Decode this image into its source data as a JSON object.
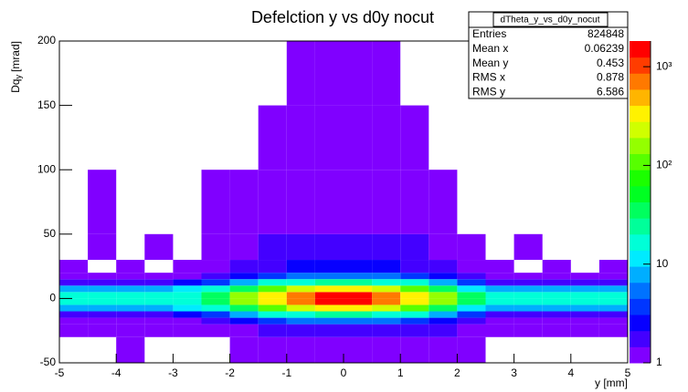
{
  "chart_data": {
    "type": "heatmap",
    "title": "Defelction y vs d0y nocut",
    "xlabel": "y [mm]",
    "ylabel": {
      "main": "Dq",
      "sub": "y",
      "unit": "[mrad]"
    },
    "xbins": [
      -5,
      -4.5,
      -4,
      -3.5,
      -3,
      -2.5,
      -2,
      -1.5,
      -1,
      -0.5,
      0,
      0.5,
      1,
      1.5,
      2,
      2.5,
      3,
      3.5,
      4,
      4.5,
      5
    ],
    "ybins": [
      -50,
      -30,
      -20,
      -15,
      -10,
      -5,
      0,
      5,
      10,
      15,
      20,
      30,
      50,
      100,
      150,
      200
    ],
    "z": [
      [
        0,
        0,
        1,
        0,
        0,
        0,
        1,
        1,
        1,
        1,
        1,
        1,
        1,
        1,
        1,
        0,
        0,
        0,
        0,
        0
      ],
      [
        1,
        1,
        1,
        1,
        1,
        1,
        1,
        2,
        2,
        2,
        2,
        2,
        2,
        2,
        1,
        1,
        1,
        1,
        1,
        1
      ],
      [
        1,
        1,
        1,
        1,
        1,
        2,
        3,
        4,
        5,
        5,
        5,
        5,
        4,
        3,
        2,
        1,
        1,
        1,
        1,
        1
      ],
      [
        2,
        2,
        2,
        2,
        3,
        4,
        8,
        15,
        20,
        25,
        25,
        20,
        15,
        8,
        4,
        2,
        2,
        2,
        2,
        2
      ],
      [
        8,
        8,
        8,
        8,
        10,
        15,
        40,
        100,
        200,
        300,
        300,
        200,
        100,
        40,
        12,
        8,
        8,
        8,
        8,
        8
      ],
      [
        15,
        15,
        15,
        15,
        20,
        40,
        150,
        400,
        800,
        1300,
        1300,
        800,
        400,
        150,
        30,
        15,
        15,
        15,
        15,
        15
      ],
      [
        15,
        15,
        15,
        15,
        20,
        40,
        150,
        400,
        800,
        1300,
        1300,
        800,
        400,
        150,
        30,
        15,
        15,
        15,
        15,
        15
      ],
      [
        8,
        8,
        8,
        8,
        10,
        15,
        40,
        100,
        200,
        300,
        300,
        200,
        100,
        40,
        12,
        8,
        8,
        8,
        8,
        8
      ],
      [
        2,
        2,
        2,
        2,
        3,
        4,
        8,
        15,
        20,
        25,
        25,
        20,
        15,
        8,
        4,
        2,
        2,
        2,
        2,
        2
      ],
      [
        1,
        1,
        1,
        1,
        1,
        2,
        3,
        4,
        5,
        6,
        6,
        5,
        4,
        3,
        2,
        1,
        1,
        1,
        1,
        1
      ],
      [
        1,
        0,
        1,
        0,
        1,
        1,
        2,
        2,
        3,
        3,
        3,
        3,
        2,
        2,
        1,
        1,
        0,
        1,
        0,
        1
      ],
      [
        0,
        1,
        0,
        1,
        0,
        1,
        1,
        2,
        2,
        2,
        2,
        2,
        2,
        1,
        1,
        0,
        1,
        0,
        0,
        0
      ],
      [
        0,
        1,
        0,
        0,
        0,
        1,
        1,
        1,
        1,
        1,
        1,
        1,
        1,
        1,
        0,
        0,
        0,
        0,
        0,
        0
      ],
      [
        0,
        0,
        0,
        0,
        0,
        0,
        0,
        1,
        1,
        1,
        1,
        1,
        1,
        0,
        0,
        0,
        0,
        0,
        0,
        0
      ],
      [
        0,
        0,
        0,
        0,
        0,
        0,
        0,
        0,
        1,
        1,
        1,
        1,
        0,
        0,
        0,
        0,
        0,
        0,
        0,
        0
      ]
    ],
    "xlim": [
      -5,
      5
    ],
    "ylim": [
      -50,
      200
    ],
    "xticks": [
      -5,
      -4,
      -3,
      -2,
      -1,
      0,
      1,
      2,
      3,
      4,
      5
    ],
    "yticks": [
      -50,
      0,
      50,
      100,
      150,
      200
    ],
    "zlim": [
      1,
      1820
    ],
    "zlog": true,
    "zticks": [
      1,
      10,
      {
        "value": 100,
        "label": "10²"
      },
      {
        "value": 1000,
        "label": "10³"
      }
    ],
    "stats": {
      "title": "dTheta_y_vs_d0y_nocut",
      "rows": [
        [
          "Entries",
          824848
        ],
        [
          "Mean x",
          0.06239
        ],
        [
          "Mean y",
          0.453
        ],
        [
          "RMS x",
          0.878
        ],
        [
          "RMS y",
          6.586
        ]
      ]
    }
  }
}
